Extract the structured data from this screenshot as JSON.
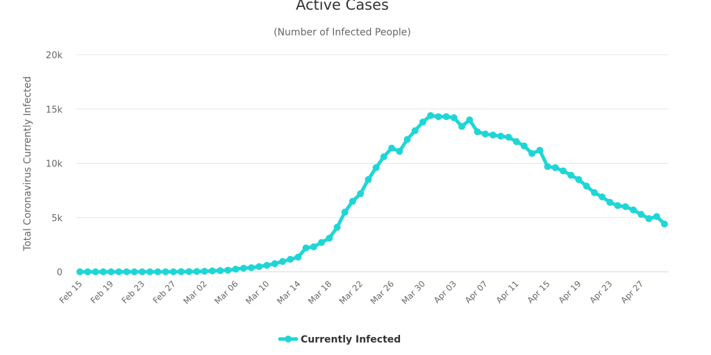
{
  "chart_data": {
    "type": "line",
    "title": "Active Cases",
    "subtitle": "(Number of Infected People)",
    "xlabel": "",
    "ylabel": "Total Coronavirus Currently Infected",
    "ylim": [
      0,
      20000
    ],
    "yticks": [
      0,
      5000,
      10000,
      15000,
      20000
    ],
    "ytick_labels": [
      "0",
      "5k",
      "10k",
      "15k",
      "20k"
    ],
    "grid": true,
    "legend": "bottom-center",
    "color": "#1fd6d6",
    "x": [
      "Feb 15",
      "Feb 16",
      "Feb 17",
      "Feb 18",
      "Feb 19",
      "Feb 20",
      "Feb 21",
      "Feb 22",
      "Feb 23",
      "Feb 24",
      "Feb 25",
      "Feb 26",
      "Feb 27",
      "Feb 28",
      "Feb 29",
      "Mar 01",
      "Mar 02",
      "Mar 03",
      "Mar 04",
      "Mar 05",
      "Mar 06",
      "Mar 07",
      "Mar 08",
      "Mar 09",
      "Mar 10",
      "Mar 11",
      "Mar 12",
      "Mar 13",
      "Mar 14",
      "Mar 15",
      "Mar 16",
      "Mar 17",
      "Mar 18",
      "Mar 19",
      "Mar 20",
      "Mar 21",
      "Mar 22",
      "Mar 23",
      "Mar 24",
      "Mar 25",
      "Mar 26",
      "Mar 27",
      "Mar 28",
      "Mar 29",
      "Mar 30",
      "Mar 31",
      "Apr 01",
      "Apr 02",
      "Apr 03",
      "Apr 04",
      "Apr 05",
      "Apr 06",
      "Apr 07",
      "Apr 08",
      "Apr 09",
      "Apr 10",
      "Apr 11",
      "Apr 12",
      "Apr 13",
      "Apr 14",
      "Apr 15",
      "Apr 16",
      "Apr 17",
      "Apr 18",
      "Apr 19",
      "Apr 20",
      "Apr 21",
      "Apr 22",
      "Apr 23",
      "Apr 24",
      "Apr 25",
      "Apr 26",
      "Apr 27",
      "Apr 28",
      "Apr 29",
      "Apr 30"
    ],
    "xtick_labels": [
      "Feb 15",
      "Feb 19",
      "Feb 23",
      "Feb 27",
      "Mar 02",
      "Mar 06",
      "Mar 10",
      "Mar 14",
      "Mar 18",
      "Mar 22",
      "Mar 26",
      "Mar 30",
      "Apr 03",
      "Apr 07",
      "Apr 11",
      "Apr 15",
      "Apr 19",
      "Apr 23",
      "Apr 27"
    ],
    "series": [
      {
        "name": "Currently Infected",
        "values": [
          0,
          0,
          0,
          0,
          0,
          0,
          0,
          0,
          0,
          0,
          0,
          0,
          0,
          10,
          20,
          30,
          50,
          80,
          110,
          150,
          250,
          330,
          380,
          480,
          600,
          750,
          950,
          1150,
          1350,
          2200,
          2300,
          2700,
          3100,
          4100,
          5500,
          6500,
          7200,
          8500,
          9600,
          10600,
          11400,
          11100,
          12200,
          13000,
          13800,
          14400,
          14300,
          14300,
          14200,
          13400,
          14000,
          12900,
          12700,
          12600,
          12500,
          12400,
          12000,
          11600,
          10900,
          11200,
          9700,
          9600,
          9300,
          8900,
          8500,
          7900,
          7300,
          6900,
          6400,
          6100,
          6000,
          5700,
          5300,
          4900,
          5100,
          4400
        ]
      }
    ]
  }
}
